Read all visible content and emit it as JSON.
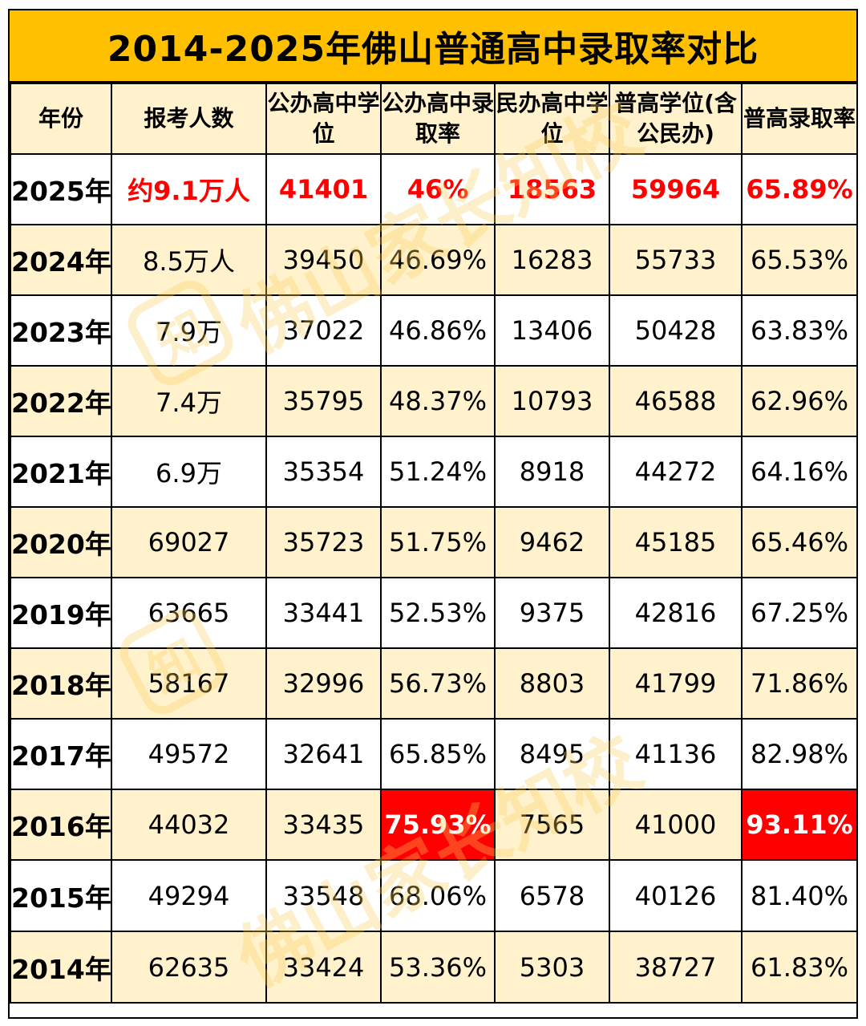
{
  "title": "2014-2025年佛山普通高中录取率对比",
  "headers": [
    "年份",
    "报考人数",
    "公办高中学位",
    "公办高中录取率",
    "民办高中学位",
    "普高学位(含公民办)",
    "普高录取率"
  ],
  "rows": [
    {
      "year": "2025年",
      "applicants": "约9.1万人",
      "public_seats": "41401",
      "public_rate": "46%",
      "private_seats": "18563",
      "total_seats": "59964",
      "total_rate": "65.89%"
    },
    {
      "year": "2024年",
      "applicants": "8.5万人",
      "public_seats": "39450",
      "public_rate": "46.69%",
      "private_seats": "16283",
      "total_seats": "55733",
      "total_rate": "65.53%"
    },
    {
      "year": "2023年",
      "applicants": "7.9万",
      "public_seats": "37022",
      "public_rate": "46.86%",
      "private_seats": "13406",
      "total_seats": "50428",
      "total_rate": "63.83%"
    },
    {
      "year": "2022年",
      "applicants": "7.4万",
      "public_seats": "35795",
      "public_rate": "48.37%",
      "private_seats": "10793",
      "total_seats": "46588",
      "total_rate": "62.96%"
    },
    {
      "year": "2021年",
      "applicants": "6.9万",
      "public_seats": "35354",
      "public_rate": "51.24%",
      "private_seats": "8918",
      "total_seats": "44272",
      "total_rate": "64.16%"
    },
    {
      "year": "2020年",
      "applicants": "69027",
      "public_seats": "35723",
      "public_rate": "51.75%",
      "private_seats": "9462",
      "total_seats": "45185",
      "total_rate": "65.46%"
    },
    {
      "year": "2019年",
      "applicants": "63665",
      "public_seats": "33441",
      "public_rate": "52.53%",
      "private_seats": "9375",
      "total_seats": "42816",
      "total_rate": "67.25%"
    },
    {
      "year": "2018年",
      "applicants": "58167",
      "public_seats": "32996",
      "public_rate": "56.73%",
      "private_seats": "8803",
      "total_seats": "41799",
      "total_rate": "71.86%"
    },
    {
      "year": "2017年",
      "applicants": "49572",
      "public_seats": "32641",
      "public_rate": "65.85%",
      "private_seats": "8495",
      "total_seats": "41136",
      "total_rate": "82.98%"
    },
    {
      "year": "2016年",
      "applicants": "44032",
      "public_seats": "33435",
      "public_rate": "75.93%",
      "private_seats": "7565",
      "total_seats": "41000",
      "total_rate": "93.11%"
    },
    {
      "year": "2015年",
      "applicants": "49294",
      "public_seats": "33548",
      "public_rate": "68.06%",
      "private_seats": "6578",
      "total_seats": "40126",
      "total_rate": "81.40%"
    },
    {
      "year": "2014年",
      "applicants": "62635",
      "public_seats": "33424",
      "public_rate": "53.36%",
      "private_seats": "5303",
      "total_seats": "38727",
      "total_rate": "61.83%"
    }
  ],
  "watermark": {
    "text": "佛山家长知校",
    "logo_char": "知"
  },
  "colors": {
    "title_bg": "#FFC000",
    "band_bg": "#FFF2CC",
    "highlight_text": "#FF0000",
    "flag_bg": "#FF0000"
  }
}
